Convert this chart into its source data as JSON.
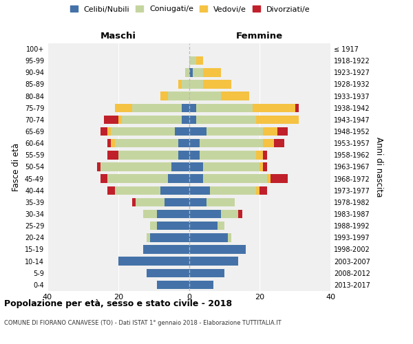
{
  "age_groups": [
    "0-4",
    "5-9",
    "10-14",
    "15-19",
    "20-24",
    "25-29",
    "30-34",
    "35-39",
    "40-44",
    "45-49",
    "50-54",
    "55-59",
    "60-64",
    "65-69",
    "70-74",
    "75-79",
    "80-84",
    "85-89",
    "90-94",
    "95-99",
    "100+"
  ],
  "birth_years": [
    "2013-2017",
    "2008-2012",
    "2003-2007",
    "1998-2002",
    "1993-1997",
    "1988-1992",
    "1983-1987",
    "1978-1982",
    "1973-1977",
    "1968-1972",
    "1963-1967",
    "1958-1962",
    "1953-1957",
    "1948-1952",
    "1943-1947",
    "1938-1942",
    "1933-1937",
    "1928-1932",
    "1923-1927",
    "1918-1922",
    "≤ 1917"
  ],
  "colors": {
    "celibi": "#4472a8",
    "coniugati": "#c5d5a0",
    "vedovi": "#f5c242",
    "divorziati": "#c0202a"
  },
  "maschi": {
    "celibi": [
      9,
      12,
      20,
      13,
      11,
      9,
      9,
      7,
      8,
      6,
      5,
      3,
      3,
      4,
      2,
      2,
      0,
      0,
      0,
      0,
      0
    ],
    "coniugati": [
      0,
      0,
      0,
      0,
      1,
      2,
      4,
      8,
      13,
      17,
      20,
      17,
      18,
      18,
      17,
      14,
      6,
      2,
      1,
      0,
      0
    ],
    "vedovi": [
      0,
      0,
      0,
      0,
      0,
      0,
      0,
      0,
      0,
      0,
      0,
      0,
      1,
      1,
      1,
      5,
      2,
      1,
      0,
      0,
      0
    ],
    "divorziati": [
      0,
      0,
      0,
      0,
      0,
      0,
      0,
      1,
      2,
      2,
      1,
      3,
      1,
      2,
      4,
      0,
      0,
      0,
      0,
      0,
      0
    ]
  },
  "femmine": {
    "celibi": [
      7,
      10,
      14,
      16,
      11,
      8,
      9,
      5,
      6,
      4,
      4,
      3,
      3,
      5,
      2,
      2,
      0,
      0,
      1,
      0,
      0
    ],
    "coniugati": [
      0,
      0,
      0,
      0,
      1,
      2,
      5,
      8,
      13,
      18,
      16,
      16,
      18,
      16,
      17,
      16,
      9,
      4,
      3,
      2,
      0
    ],
    "vedovi": [
      0,
      0,
      0,
      0,
      0,
      0,
      0,
      0,
      1,
      1,
      1,
      2,
      3,
      4,
      12,
      12,
      8,
      8,
      5,
      2,
      0
    ],
    "divorziati": [
      0,
      0,
      0,
      0,
      0,
      0,
      1,
      0,
      2,
      5,
      1,
      1,
      3,
      3,
      0,
      1,
      0,
      0,
      0,
      0,
      0
    ]
  },
  "xlim": 40,
  "title": "Popolazione per età, sesso e stato civile - 2018",
  "subtitle": "COMUNE DI FIORANO CANAVESE (TO) - Dati ISTAT 1° gennaio 2018 - Elaborazione TUTTITALIA.IT",
  "xlabel_left": "Maschi",
  "xlabel_right": "Femmine",
  "ylabel": "Fasce di età",
  "ylabel_right": "Anni di nascita",
  "legend_labels": [
    "Celibi/Nubili",
    "Coniugati/e",
    "Vedovi/e",
    "Divorziati/e"
  ],
  "background_color": "#ffffff"
}
